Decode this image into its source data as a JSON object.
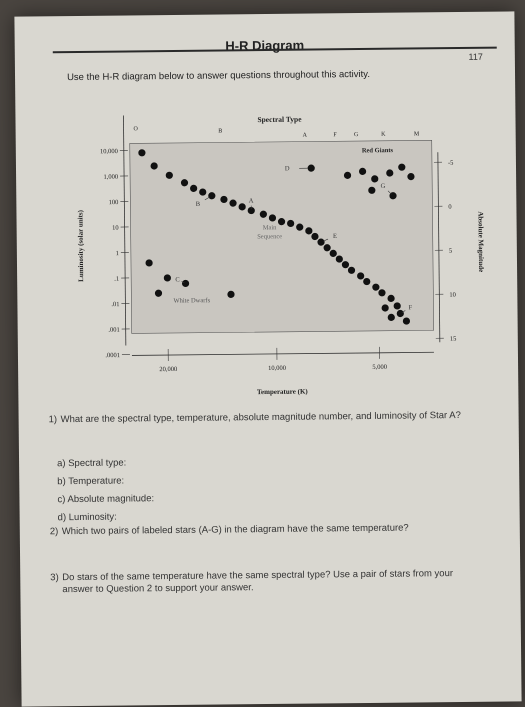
{
  "page": {
    "title": "H-R Diagram",
    "page_number": "117",
    "intro": "Use the H-R diagram below to answer questions throughout this activity."
  },
  "chart_data": {
    "type": "scatter",
    "title": "Spectral Type",
    "xlabel": "Temperature (K)",
    "ylabel": "Luminosity (solar units)",
    "y2label": "Absolute Magnitude",
    "spectral_types": [
      "O",
      "B",
      "A",
      "F",
      "G",
      "K",
      "M"
    ],
    "x_ticks": [
      "20,000",
      "10,000",
      "5,000"
    ],
    "y_ticks": [
      "10,000",
      "1,000",
      "100",
      "10",
      "1",
      ".1",
      ".01",
      ".001",
      ".0001"
    ],
    "y2_ticks": [
      "-5",
      "0",
      "5",
      "10",
      "15"
    ],
    "regions": [
      "Red Giants",
      "Main Sequence",
      "White Dwarfs"
    ],
    "star_labels": [
      "A",
      "B",
      "C",
      "D",
      "E",
      "F",
      "G"
    ],
    "series": [
      {
        "name": "Main Sequence",
        "points": [
          [
            0.04,
            0.95
          ],
          [
            0.08,
            0.88
          ],
          [
            0.13,
            0.83
          ],
          [
            0.18,
            0.79
          ],
          [
            0.21,
            0.76
          ],
          [
            0.24,
            0.74
          ],
          [
            0.27,
            0.72
          ],
          [
            0.31,
            0.7
          ],
          [
            0.34,
            0.68
          ],
          [
            0.37,
            0.66
          ],
          [
            0.4,
            0.64
          ],
          [
            0.44,
            0.62
          ],
          [
            0.47,
            0.6
          ],
          [
            0.5,
            0.58
          ],
          [
            0.53,
            0.57
          ],
          [
            0.56,
            0.55
          ],
          [
            0.59,
            0.53
          ],
          [
            0.61,
            0.5
          ],
          [
            0.63,
            0.47
          ],
          [
            0.65,
            0.44
          ],
          [
            0.67,
            0.41
          ],
          [
            0.69,
            0.38
          ],
          [
            0.71,
            0.35
          ],
          [
            0.73,
            0.32
          ],
          [
            0.76,
            0.29
          ],
          [
            0.78,
            0.26
          ],
          [
            0.81,
            0.23
          ],
          [
            0.83,
            0.2
          ],
          [
            0.86,
            0.17
          ],
          [
            0.88,
            0.13
          ],
          [
            0.84,
            0.12
          ],
          [
            0.89,
            0.09
          ],
          [
            0.86,
            0.07
          ],
          [
            0.91,
            0.05
          ]
        ]
      },
      {
        "name": "Red Giants",
        "points": [
          [
            0.6,
            0.86
          ],
          [
            0.72,
            0.82
          ],
          [
            0.77,
            0.84
          ],
          [
            0.81,
            0.8
          ],
          [
            0.86,
            0.83
          ],
          [
            0.9,
            0.86
          ],
          [
            0.93,
            0.81
          ],
          [
            0.8,
            0.74
          ],
          [
            0.87,
            0.71
          ]
        ]
      },
      {
        "name": "White Dwarfs",
        "points": [
          [
            0.06,
            0.37
          ],
          [
            0.12,
            0.29
          ],
          [
            0.18,
            0.26
          ],
          [
            0.09,
            0.21
          ],
          [
            0.33,
            0.2
          ]
        ]
      }
    ],
    "star_positions": {
      "A": [
        0.4,
        0.64
      ],
      "B": [
        0.27,
        0.72
      ],
      "C": [
        0.18,
        0.26
      ],
      "D": [
        0.6,
        0.86
      ],
      "E": [
        0.63,
        0.47
      ],
      "F": [
        0.89,
        0.09
      ],
      "G": [
        0.87,
        0.71
      ]
    }
  },
  "questions": [
    {
      "num": "1)",
      "text": "What are the spectral type, temperature, absolute magnitude number, and luminosity of Star A?",
      "parts": [
        {
          "letter": "a)",
          "text": "Spectral type:"
        },
        {
          "letter": "b)",
          "text": "Temperature:"
        },
        {
          "letter": "c)",
          "text": "Absolute magnitude:"
        },
        {
          "letter": "d)",
          "text": "Luminosity:"
        }
      ]
    },
    {
      "num": "2)",
      "text": "Which two pairs of labeled stars (A-G) in the diagram have the same temperature?"
    },
    {
      "num": "3)",
      "text": "Do stars of the same temperature have the same spectral type? Use a pair of stars from your answer to Question 2 to support your answer."
    }
  ]
}
